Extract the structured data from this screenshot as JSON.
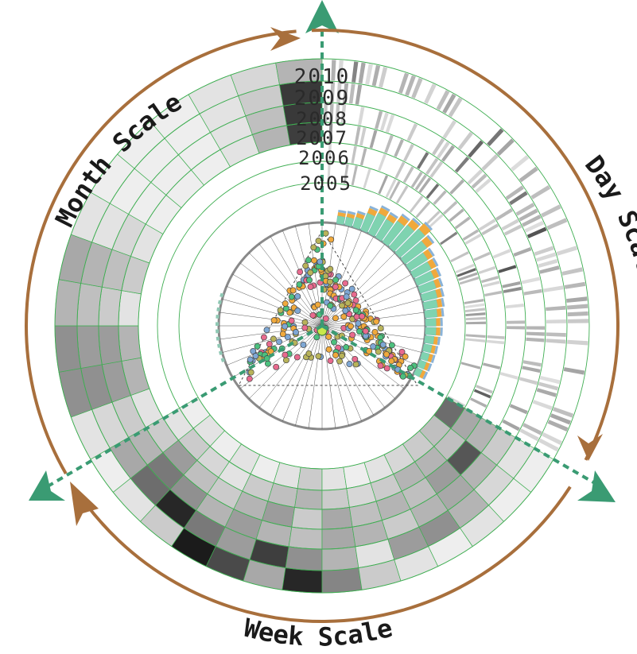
{
  "chart_data": {
    "type": "radial-calendar-heatmap",
    "years": [
      "2010",
      "2009",
      "2008",
      "2007",
      "2006",
      "2005"
    ],
    "scales": [
      {
        "name": "Day Scale"
      },
      {
        "name": "Week Scale"
      },
      {
        "name": "Month Scale"
      }
    ],
    "month_scale": {
      "rows": 4,
      "cols": 12,
      "values": [
        [
          0.1,
          0.45,
          0.45,
          0.3,
          0.35,
          0.1,
          0.05,
          0.05,
          0.05,
          0.1,
          0.15,
          0.3
        ],
        [
          0.15,
          0.45,
          0.4,
          0.25,
          0.3,
          0.1,
          0.05,
          0.05,
          0.05,
          0.1,
          0.2,
          0.82
        ],
        [
          0.2,
          0.4,
          0.4,
          0.2,
          0.25,
          0.15,
          0.05,
          0.05,
          0.05,
          0.1,
          0.25,
          0.82
        ],
        [
          0.1,
          0.3,
          0.3,
          0.1,
          0.2,
          0.1,
          0.05,
          0.05,
          0.05,
          0.1,
          0.3,
          0.8
        ]
      ]
    },
    "week_scale": {
      "rows": 6,
      "cols": 14,
      "values": [
        [
          0.05,
          0.1,
          0.05,
          0.1,
          0.05,
          0.1,
          0.2,
          0.1,
          0.05,
          0.1,
          0.15,
          0.2,
          0.25,
          0.6
        ],
        [
          0.1,
          0.2,
          0.15,
          0.1,
          0.2,
          0.25,
          0.3,
          0.2,
          0.15,
          0.2,
          0.3,
          0.3,
          0.25,
          0.35
        ],
        [
          0.2,
          0.4,
          0.25,
          0.2,
          0.3,
          0.4,
          0.2,
          0.35,
          0.25,
          0.3,
          0.25,
          0.4,
          0.7,
          0.3
        ],
        [
          0.3,
          0.55,
          0.45,
          0.3,
          0.4,
          0.3,
          0.25,
          0.35,
          0.3,
          0.2,
          0.3,
          0.35,
          0.3,
          0.2
        ],
        [
          0.35,
          0.6,
          0.9,
          0.55,
          0.4,
          0.8,
          0.45,
          0.3,
          0.1,
          0.4,
          0.45,
          0.3,
          0.15,
          0.1
        ],
        [
          0.05,
          0.1,
          0.2,
          0.95,
          0.75,
          0.35,
          0.9,
          0.5,
          0.2,
          0.1,
          0.05,
          0.1,
          0.05,
          0.05
        ]
      ]
    },
    "scatter": {
      "categories": [
        "orange",
        "blue",
        "green",
        "pink",
        "olive"
      ],
      "n_points": 280
    },
    "histogram": {
      "values": [
        0.1,
        0.12,
        0.2,
        0.45,
        0.6,
        0.55,
        0.7,
        0.8,
        0.95,
        0.75,
        0.55,
        0.5,
        0.45,
        0.4,
        0.35,
        0.3,
        0.25,
        0.2,
        0.2,
        0.15,
        0.12,
        0.1,
        0.08,
        0.06
      ]
    },
    "colors": {
      "brown_arrow": "#a86f3c",
      "green_marker": "#3a9b73",
      "grid_green": "#3fae52",
      "hist_teal": "#7fd3b0",
      "hist_orange": "#f0a93c",
      "hist_blue": "#8ab3d8"
    }
  }
}
